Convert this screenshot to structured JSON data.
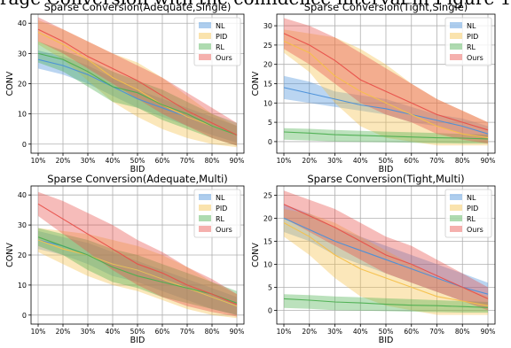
{
  "figure": {
    "background_text": "rage Conversion with the confidence interval in Figure 1"
  },
  "colors": {
    "NL": "#4a90d9",
    "PID": "#f5c04a",
    "RL": "#4caf50",
    "Ours": "#e8504a"
  },
  "chart_data": [
    {
      "type": "line",
      "title": "Sparse Conversion(Adequate,Single)",
      "xlabel": "BID",
      "ylabel": "CONV",
      "categories": [
        "10%",
        "20%",
        "30%",
        "40%",
        "50%",
        "60%",
        "70%",
        "80%",
        "90%"
      ],
      "ylim": [
        -3,
        43
      ],
      "yticks": [
        0,
        10,
        20,
        30,
        40
      ],
      "grid": true,
      "legend": "top-right",
      "series": [
        {
          "name": "NL",
          "values": [
            28,
            26,
            23,
            19,
            15,
            12,
            9,
            6,
            3
          ],
          "lower": [
            25,
            23,
            20,
            16,
            12,
            9,
            6,
            3,
            0.5
          ],
          "upper": [
            31,
            29,
            26,
            22,
            18,
            15,
            12,
            9,
            6
          ]
        },
        {
          "name": "PID",
          "values": [
            37,
            33,
            28,
            22,
            18,
            13,
            9,
            6,
            3
          ],
          "lower": [
            33,
            28,
            21,
            14,
            9,
            5,
            2,
            0,
            -1
          ],
          "upper": [
            41,
            38,
            34,
            30,
            27,
            22,
            16,
            10,
            6
          ]
        },
        {
          "name": "RL",
          "values": [
            30,
            28,
            24,
            19,
            17,
            13,
            10,
            6,
            3
          ],
          "lower": [
            27,
            24,
            19,
            14,
            12,
            8,
            5,
            2,
            -0.5
          ],
          "upper": [
            34,
            31,
            28,
            24,
            21,
            18,
            14,
            10,
            7
          ]
        },
        {
          "name": "Ours",
          "values": [
            38,
            34,
            29,
            25,
            21,
            16,
            11,
            7,
            3
          ],
          "lower": [
            34,
            30,
            25,
            20,
            15,
            10,
            6,
            2,
            -0.5
          ],
          "upper": [
            42,
            38,
            34,
            30,
            26,
            22,
            17,
            12,
            7
          ]
        }
      ]
    },
    {
      "type": "line",
      "title": "Sparse Conversion(Tight,Single)",
      "xlabel": "BID",
      "ylabel": "CONV",
      "categories": [
        "10%",
        "20%",
        "30%",
        "40%",
        "50%",
        "60%",
        "70%",
        "80%",
        "90%"
      ],
      "ylim": [
        -3,
        33
      ],
      "yticks": [
        0,
        5,
        10,
        15,
        20,
        25,
        30
      ],
      "grid": true,
      "legend": "top-right",
      "series": [
        {
          "name": "NL",
          "values": [
            14,
            12.5,
            11,
            9.5,
            8.5,
            7,
            5.5,
            4,
            2
          ],
          "lower": [
            11,
            10,
            9,
            8,
            7,
            5,
            4,
            2,
            0.5
          ],
          "upper": [
            17,
            15.5,
            13,
            12,
            11,
            9,
            7,
            6,
            4
          ]
        },
        {
          "name": "PID",
          "values": [
            26,
            23,
            17,
            13,
            10,
            7,
            4,
            2,
            1
          ],
          "lower": [
            23,
            18,
            10,
            4,
            1,
            0,
            -1,
            -1,
            -1
          ],
          "upper": [
            29,
            28,
            27,
            24,
            20,
            15,
            11,
            8,
            5
          ]
        },
        {
          "name": "RL",
          "values": [
            2.5,
            2.2,
            1.8,
            1.6,
            1.4,
            1.2,
            1,
            0.9,
            0.7
          ],
          "lower": [
            0.5,
            0.3,
            0,
            -0.1,
            -0.2,
            -0.3,
            -0.4,
            -0.5,
            -0.5
          ],
          "upper": [
            3.5,
            3.3,
            3,
            2.8,
            2.6,
            2.4,
            2.2,
            2,
            1.8
          ]
        },
        {
          "name": "Ours",
          "values": [
            28,
            25,
            21,
            16,
            13,
            10,
            7,
            5,
            3
          ],
          "lower": [
            24,
            20,
            15,
            10,
            7,
            5,
            2,
            0.5,
            -0.5
          ],
          "upper": [
            32,
            30,
            27,
            23,
            19,
            15,
            11,
            8,
            5
          ]
        }
      ]
    },
    {
      "type": "line",
      "title": "Sparse Conversion(Adequate,Multi)",
      "xlabel": "BID",
      "ylabel": "CONV",
      "categories": [
        "10%",
        "20%",
        "30%",
        "40%",
        "50%",
        "60%",
        "70%",
        "80%",
        "90%"
      ],
      "ylim": [
        -3,
        43
      ],
      "yticks": [
        0,
        10,
        20,
        30,
        40
      ],
      "grid": true,
      "legend": "top-right",
      "series": [
        {
          "name": "NL",
          "values": [
            25,
            23,
            20,
            17,
            15,
            12,
            9,
            6,
            3
          ],
          "lower": [
            22,
            20,
            17,
            13,
            11,
            8,
            5,
            2,
            0
          ],
          "upper": [
            28,
            26,
            24,
            21,
            18,
            15,
            12,
            9,
            6
          ]
        },
        {
          "name": "PID",
          "values": [
            25,
            22,
            20,
            17,
            15,
            12,
            9,
            6,
            3
          ],
          "lower": [
            21,
            17,
            13,
            10,
            8,
            5,
            2,
            0,
            -1
          ],
          "upper": [
            29,
            28,
            27,
            25,
            23,
            20,
            16,
            11,
            7
          ]
        },
        {
          "name": "RL",
          "values": [
            26,
            23,
            20,
            16,
            13,
            11,
            9,
            7,
            4
          ],
          "lower": [
            23,
            20,
            15,
            11,
            9,
            6,
            4,
            2,
            0
          ],
          "upper": [
            29,
            27,
            25,
            22,
            20,
            17,
            14,
            11,
            8
          ]
        },
        {
          "name": "Ours",
          "values": [
            37,
            32,
            27,
            22,
            17,
            14,
            10,
            7,
            3.5
          ],
          "lower": [
            33,
            27,
            21,
            15,
            10,
            6,
            3,
            1,
            -0.5
          ],
          "upper": [
            41,
            38,
            34,
            30,
            25,
            21,
            16,
            12,
            7
          ]
        }
      ]
    },
    {
      "type": "line",
      "title": "Sparse Conversion(Tight,Multi)",
      "xlabel": "BID",
      "ylabel": "CONV",
      "categories": [
        "10%",
        "20%",
        "30%",
        "40%",
        "50%",
        "60%",
        "70%",
        "80%",
        "90%"
      ],
      "ylim": [
        -3,
        27
      ],
      "yticks": [
        0,
        5,
        10,
        15,
        20,
        25
      ],
      "grid": true,
      "legend": "top-right",
      "series": [
        {
          "name": "NL",
          "values": [
            20,
            17.5,
            15,
            13,
            11,
            9,
            7,
            5,
            3.5
          ],
          "lower": [
            17,
            15,
            12,
            10,
            8,
            6,
            4,
            2,
            1
          ],
          "upper": [
            23,
            21,
            18,
            16,
            14,
            12,
            10,
            8,
            6
          ]
        },
        {
          "name": "PID",
          "values": [
            19,
            16,
            12,
            9,
            7,
            5,
            3,
            2,
            1
          ],
          "lower": [
            16,
            12,
            7,
            3,
            1,
            0,
            -1,
            -1,
            -1
          ],
          "upper": [
            22,
            21,
            19,
            16,
            13,
            10,
            7,
            5,
            3
          ]
        },
        {
          "name": "RL",
          "values": [
            2.5,
            2.2,
            1.8,
            1.6,
            1.3,
            1.1,
            1,
            0.8,
            0.6
          ],
          "lower": [
            0.5,
            0.3,
            0,
            -0.1,
            -0.2,
            -0.3,
            -0.4,
            -0.5,
            -0.5
          ],
          "upper": [
            3.5,
            3.3,
            3,
            2.8,
            2.6,
            2.4,
            2.2,
            2,
            1.8
          ]
        },
        {
          "name": "Ours",
          "values": [
            23,
            20.5,
            18,
            15,
            12,
            10,
            7.5,
            5,
            2.5
          ],
          "lower": [
            20,
            17,
            14,
            11,
            8,
            6,
            4,
            2,
            0
          ],
          "upper": [
            26,
            24,
            22,
            19,
            16,
            14,
            11,
            8,
            5
          ]
        }
      ]
    }
  ]
}
